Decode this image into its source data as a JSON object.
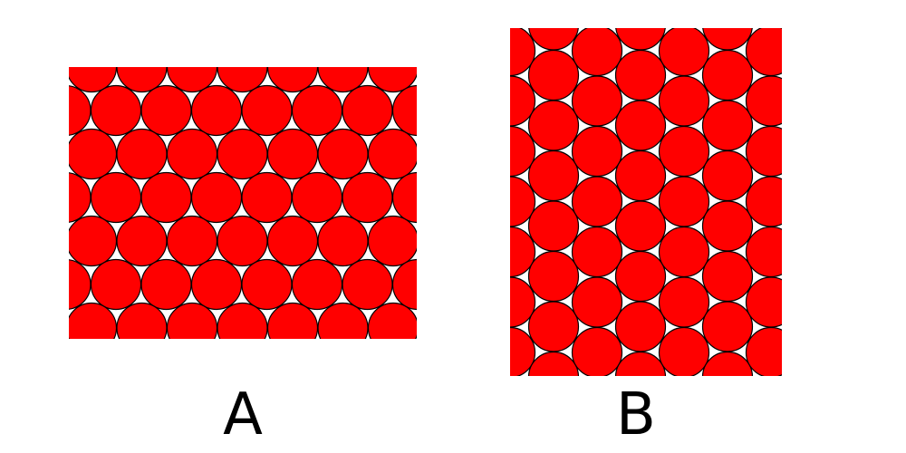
{
  "colors": {
    "background": "#ffffff",
    "circle_fill": "#ff0000",
    "circle_stroke": "#000000"
  },
  "panels": [
    {
      "id": "A",
      "label": "A",
      "orientation": "horizontal-rows"
    },
    {
      "id": "B",
      "label": "B",
      "orientation": "vertical-columns"
    }
  ]
}
